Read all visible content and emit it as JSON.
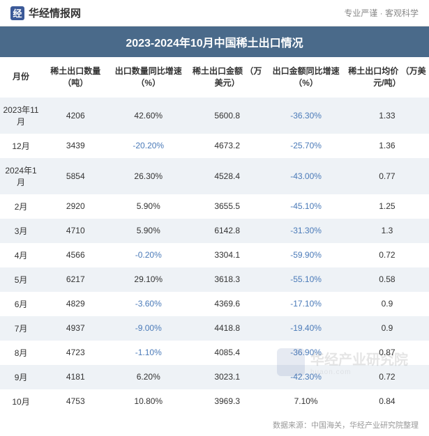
{
  "header": {
    "logo_text": "华经情报网",
    "logo_char": "经",
    "tagline": "专业严谨  ·  客观科学"
  },
  "title": "2023-2024年10月中国稀土出口情况",
  "columns": [
    "月份",
    "稀土出口数量\n（吨）",
    "出口数量同比增速（%）",
    "稀土出口金额\n（万美元）",
    "出口金额同比增速（%）",
    "稀土出口均价\n（万美元/吨）"
  ],
  "rows": [
    {
      "month": "2023年11月",
      "qty": "4206",
      "qty_growth": "42.60%",
      "amount": "5600.8",
      "amount_growth": "-36.30%",
      "avg_price": "1.33"
    },
    {
      "month": "12月",
      "qty": "3439",
      "qty_growth": "-20.20%",
      "amount": "4673.2",
      "amount_growth": "-25.70%",
      "avg_price": "1.36"
    },
    {
      "month": "2024年1月",
      "qty": "5854",
      "qty_growth": "26.30%",
      "amount": "4528.4",
      "amount_growth": "-43.00%",
      "avg_price": "0.77"
    },
    {
      "month": "2月",
      "qty": "2920",
      "qty_growth": "5.90%",
      "amount": "3655.5",
      "amount_growth": "-45.10%",
      "avg_price": "1.25"
    },
    {
      "month": "3月",
      "qty": "4710",
      "qty_growth": "5.90%",
      "amount": "6142.8",
      "amount_growth": "-31.30%",
      "avg_price": "1.3"
    },
    {
      "month": "4月",
      "qty": "4566",
      "qty_growth": "-0.20%",
      "amount": "3304.1",
      "amount_growth": "-59.90%",
      "avg_price": "0.72"
    },
    {
      "month": "5月",
      "qty": "6217",
      "qty_growth": "29.10%",
      "amount": "3618.3",
      "amount_growth": "-55.10%",
      "avg_price": "0.58"
    },
    {
      "month": "6月",
      "qty": "4829",
      "qty_growth": "-3.60%",
      "amount": "4369.6",
      "amount_growth": "-17.10%",
      "avg_price": "0.9"
    },
    {
      "month": "7月",
      "qty": "4937",
      "qty_growth": "-9.00%",
      "amount": "4418.8",
      "amount_growth": "-19.40%",
      "avg_price": "0.9"
    },
    {
      "month": "8月",
      "qty": "4723",
      "qty_growth": "-1.10%",
      "amount": "4085.4",
      "amount_growth": "-36.90%",
      "avg_price": "0.87"
    },
    {
      "month": "9月",
      "qty": "4181",
      "qty_growth": "6.20%",
      "amount": "3023.1",
      "amount_growth": "-42.30%",
      "avg_price": "0.72"
    },
    {
      "month": "10月",
      "qty": "4753",
      "qty_growth": "10.80%",
      "amount": "3969.3",
      "amount_growth": "7.10%",
      "avg_price": "0.84"
    }
  ],
  "footer": "数据来源：中国海关，华经产业研究院整理",
  "watermark": {
    "cn": "华经产业研究院",
    "en": "huaon.com"
  },
  "colors": {
    "title_bg": "#4a6a8a",
    "row_odd": "#eef2f6",
    "negative": "#4a7ab8"
  }
}
